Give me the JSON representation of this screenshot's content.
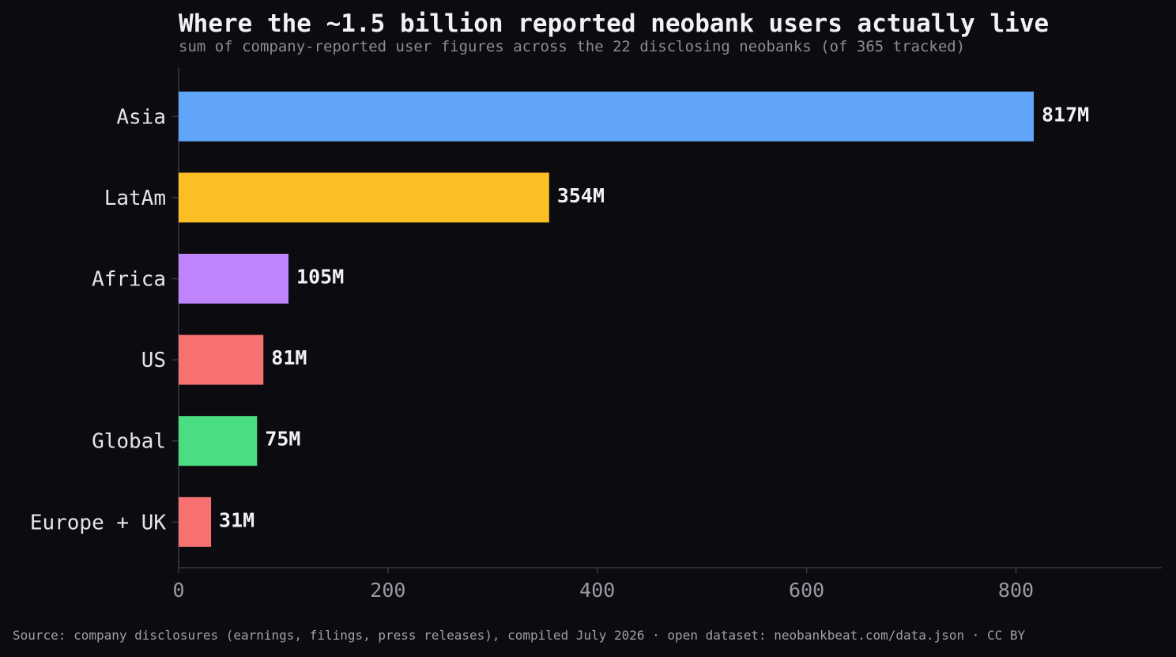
{
  "title": "Where the ~1.5 billion reported neobank users actually live",
  "subtitle": "sum of company-reported user figures across the 22 disclosing neobanks (of 365 tracked)",
  "source": "Source: company disclosures (earnings, filings, press releases), compiled July 2026 · open dataset: neobankbeat.com/data.json · CC BY",
  "colors": {
    "background": "#0b0b10",
    "axis": "#3a3a48",
    "tick_label": "#9a9aa4",
    "category_label": "#e6e6ea",
    "value_label": "#f2f2f5"
  },
  "chart_data": {
    "type": "bar",
    "orientation": "horizontal",
    "categories": [
      "Asia",
      "LatAm",
      "Africa",
      "US",
      "Global",
      "Europe + UK"
    ],
    "values": [
      817,
      354,
      105,
      81,
      75,
      31
    ],
    "value_labels": [
      "817M",
      "354M",
      "105M",
      "81M",
      "75M",
      "31M"
    ],
    "bar_colors": [
      "#60a5fa",
      "#fbbf24",
      "#c084fc",
      "#f87171",
      "#4ade80",
      "#f87171"
    ],
    "x_ticks": [
      0,
      200,
      400,
      600,
      800
    ],
    "xlim": [
      0,
      940
    ],
    "grid": false
  }
}
